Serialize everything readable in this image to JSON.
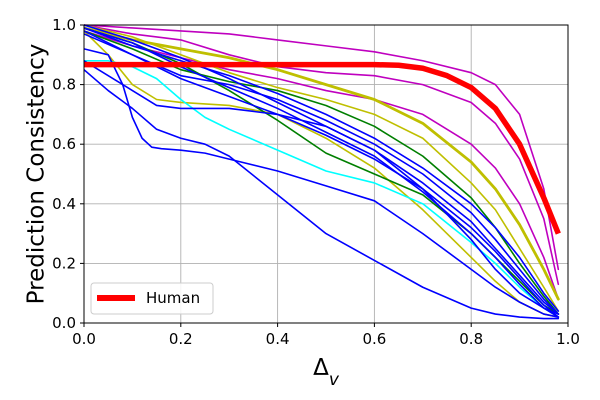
{
  "chart_data": {
    "type": "line",
    "title": "",
    "xlabel_main": "Δ",
    "xlabel_sub": "v",
    "ylabel": "Prediction Consistency",
    "xlim": [
      0,
      1
    ],
    "ylim": [
      0,
      1
    ],
    "xticks": [
      0,
      0.2,
      0.4,
      0.6,
      0.8,
      1
    ],
    "yticks": [
      0,
      0.2,
      0.4,
      0.6,
      0.8,
      1
    ],
    "xtick_labels": [
      "0.0",
      "0.2",
      "0.4",
      "0.6",
      "0.8",
      "1.0"
    ],
    "ytick_labels": [
      "0.0",
      "0.2",
      "0.4",
      "0.6",
      "0.8",
      "1.0"
    ],
    "grid": true,
    "legend": {
      "position": "lower-left",
      "entries": [
        "Human"
      ]
    },
    "colors": {
      "human": "#ff0000",
      "magenta": "#bf00bf",
      "yellow": "#bfbf00",
      "blue": "#0000ff",
      "green": "#007f00",
      "cyan": "#00ffff",
      "grid": "#b0b0b0"
    },
    "series": [
      {
        "name": "Human",
        "color": "human",
        "width": 5.5,
        "x": [
          0,
          0.05,
          0.1,
          0.2,
          0.3,
          0.4,
          0.5,
          0.6,
          0.65,
          0.7,
          0.75,
          0.8,
          0.85,
          0.9,
          0.95,
          0.98
        ],
        "y": [
          0.867,
          0.867,
          0.867,
          0.867,
          0.867,
          0.867,
          0.867,
          0.867,
          0.865,
          0.855,
          0.83,
          0.79,
          0.72,
          0.6,
          0.42,
          0.3
        ]
      },
      {
        "name": "magenta-1",
        "color": "magenta",
        "width": 1.6,
        "x": [
          0,
          0.1,
          0.2,
          0.3,
          0.4,
          0.5,
          0.6,
          0.7,
          0.8,
          0.85,
          0.9,
          0.95,
          0.98
        ],
        "y": [
          1.0,
          0.99,
          0.98,
          0.97,
          0.95,
          0.93,
          0.91,
          0.88,
          0.84,
          0.8,
          0.7,
          0.45,
          0.18
        ]
      },
      {
        "name": "magenta-2",
        "color": "magenta",
        "width": 1.6,
        "x": [
          0,
          0.1,
          0.2,
          0.3,
          0.4,
          0.5,
          0.6,
          0.7,
          0.8,
          0.85,
          0.9,
          0.95,
          0.98
        ],
        "y": [
          1.0,
          0.97,
          0.95,
          0.9,
          0.86,
          0.84,
          0.83,
          0.8,
          0.74,
          0.67,
          0.55,
          0.35,
          0.13
        ]
      },
      {
        "name": "magenta-3",
        "color": "magenta",
        "width": 1.6,
        "x": [
          0,
          0.1,
          0.2,
          0.3,
          0.4,
          0.5,
          0.6,
          0.7,
          0.8,
          0.85,
          0.9,
          0.95,
          0.98
        ],
        "y": [
          0.98,
          0.93,
          0.89,
          0.85,
          0.82,
          0.78,
          0.75,
          0.7,
          0.6,
          0.52,
          0.4,
          0.22,
          0.08
        ]
      },
      {
        "name": "yellow-1",
        "color": "yellow",
        "width": 2.8,
        "x": [
          0,
          0.1,
          0.2,
          0.3,
          0.4,
          0.5,
          0.6,
          0.7,
          0.8,
          0.85,
          0.9,
          0.95,
          0.98
        ],
        "y": [
          0.99,
          0.95,
          0.92,
          0.89,
          0.85,
          0.8,
          0.75,
          0.67,
          0.54,
          0.45,
          0.33,
          0.18,
          0.08
        ]
      },
      {
        "name": "yellow-2",
        "color": "yellow",
        "width": 1.6,
        "x": [
          0,
          0.1,
          0.2,
          0.3,
          0.4,
          0.5,
          0.6,
          0.7,
          0.8,
          0.85,
          0.9,
          0.95,
          0.98
        ],
        "y": [
          1.0,
          0.96,
          0.9,
          0.84,
          0.79,
          0.75,
          0.7,
          0.62,
          0.47,
          0.38,
          0.25,
          0.12,
          0.04
        ]
      },
      {
        "name": "yellow-3",
        "color": "yellow",
        "width": 1.6,
        "x": [
          0,
          0.05,
          0.1,
          0.15,
          0.2,
          0.3,
          0.4,
          0.5,
          0.6,
          0.7,
          0.8,
          0.85,
          0.9,
          0.95,
          0.98
        ],
        "y": [
          0.98,
          0.9,
          0.8,
          0.75,
          0.74,
          0.73,
          0.7,
          0.62,
          0.52,
          0.38,
          0.22,
          0.14,
          0.07,
          0.03,
          0.02
        ]
      },
      {
        "name": "green-1",
        "color": "green",
        "width": 1.6,
        "x": [
          0,
          0.1,
          0.2,
          0.3,
          0.4,
          0.5,
          0.6,
          0.7,
          0.8,
          0.85,
          0.9,
          0.95,
          0.98
        ],
        "y": [
          0.98,
          0.92,
          0.85,
          0.81,
          0.78,
          0.73,
          0.66,
          0.56,
          0.42,
          0.32,
          0.2,
          0.09,
          0.03
        ]
      },
      {
        "name": "green-2",
        "color": "green",
        "width": 1.6,
        "x": [
          0,
          0.1,
          0.2,
          0.3,
          0.4,
          0.5,
          0.6,
          0.7,
          0.8,
          0.85,
          0.9,
          0.95,
          0.98
        ],
        "y": [
          0.99,
          0.94,
          0.87,
          0.78,
          0.68,
          0.57,
          0.5,
          0.43,
          0.3,
          0.22,
          0.14,
          0.06,
          0.03
        ]
      },
      {
        "name": "cyan-1",
        "color": "cyan",
        "width": 1.6,
        "x": [
          0,
          0.05,
          0.1,
          0.15,
          0.2,
          0.25,
          0.3,
          0.4,
          0.5,
          0.6,
          0.7,
          0.8,
          0.85,
          0.9,
          0.95,
          0.98
        ],
        "y": [
          0.88,
          0.88,
          0.86,
          0.82,
          0.75,
          0.69,
          0.65,
          0.58,
          0.51,
          0.47,
          0.4,
          0.27,
          0.2,
          0.12,
          0.05,
          0.02
        ]
      },
      {
        "name": "blue-1",
        "color": "blue",
        "width": 1.6,
        "x": [
          0,
          0.05,
          0.1,
          0.15,
          0.2,
          0.25,
          0.3,
          0.4,
          0.5,
          0.6,
          0.7,
          0.8,
          0.85,
          0.9,
          0.95,
          0.98
        ],
        "y": [
          0.85,
          0.78,
          0.72,
          0.65,
          0.62,
          0.6,
          0.56,
          0.43,
          0.3,
          0.21,
          0.12,
          0.05,
          0.03,
          0.02,
          0.015,
          0.015
        ]
      },
      {
        "name": "blue-2",
        "color": "blue",
        "width": 1.6,
        "x": [
          0,
          0.05,
          0.08,
          0.1,
          0.12,
          0.14,
          0.16,
          0.2,
          0.25,
          0.3,
          0.4,
          0.5,
          0.6,
          0.7,
          0.8,
          0.85,
          0.9,
          0.95,
          0.98
        ],
        "y": [
          0.92,
          0.9,
          0.8,
          0.69,
          0.62,
          0.59,
          0.585,
          0.58,
          0.57,
          0.55,
          0.51,
          0.46,
          0.41,
          0.3,
          0.18,
          0.12,
          0.07,
          0.03,
          0.02
        ]
      },
      {
        "name": "blue-3",
        "color": "blue",
        "width": 1.6,
        "x": [
          0,
          0.1,
          0.15,
          0.2,
          0.3,
          0.4,
          0.5,
          0.6,
          0.7,
          0.8,
          0.85,
          0.9,
          0.95,
          0.98
        ],
        "y": [
          0.88,
          0.78,
          0.73,
          0.72,
          0.72,
          0.7,
          0.66,
          0.58,
          0.45,
          0.28,
          0.18,
          0.1,
          0.05,
          0.03
        ]
      },
      {
        "name": "blue-4",
        "color": "blue",
        "width": 1.6,
        "x": [
          0,
          0.1,
          0.2,
          0.3,
          0.4,
          0.5,
          0.6,
          0.7,
          0.8,
          0.85,
          0.9,
          0.95,
          0.98
        ],
        "y": [
          0.99,
          0.93,
          0.88,
          0.83,
          0.77,
          0.7,
          0.62,
          0.52,
          0.4,
          0.32,
          0.22,
          0.1,
          0.04
        ]
      },
      {
        "name": "blue-5",
        "color": "blue",
        "width": 1.6,
        "x": [
          0,
          0.1,
          0.2,
          0.3,
          0.4,
          0.5,
          0.6,
          0.7,
          0.8,
          0.85,
          0.9,
          0.95,
          0.98
        ],
        "y": [
          0.97,
          0.9,
          0.83,
          0.8,
          0.75,
          0.68,
          0.6,
          0.5,
          0.37,
          0.28,
          0.18,
          0.08,
          0.03
        ]
      },
      {
        "name": "blue-6",
        "color": "blue",
        "width": 1.6,
        "x": [
          0,
          0.1,
          0.2,
          0.3,
          0.4,
          0.5,
          0.6,
          0.7,
          0.8,
          0.85,
          0.9,
          0.95,
          0.98
        ],
        "y": [
          1.0,
          0.95,
          0.89,
          0.82,
          0.74,
          0.66,
          0.58,
          0.47,
          0.34,
          0.25,
          0.16,
          0.07,
          0.03
        ]
      },
      {
        "name": "blue-7",
        "color": "blue",
        "width": 1.6,
        "x": [
          0,
          0.1,
          0.2,
          0.3,
          0.4,
          0.5,
          0.6,
          0.7,
          0.8,
          0.85,
          0.9,
          0.95,
          0.98
        ],
        "y": [
          0.98,
          0.9,
          0.82,
          0.76,
          0.7,
          0.63,
          0.55,
          0.45,
          0.32,
          0.24,
          0.15,
          0.06,
          0.02
        ]
      },
      {
        "name": "blue-8",
        "color": "blue",
        "width": 1.6,
        "x": [
          0,
          0.1,
          0.2,
          0.3,
          0.4,
          0.5,
          0.6,
          0.7,
          0.8,
          0.85,
          0.9,
          0.95,
          0.98
        ],
        "y": [
          0.99,
          0.94,
          0.86,
          0.79,
          0.72,
          0.64,
          0.56,
          0.44,
          0.3,
          0.22,
          0.13,
          0.05,
          0.02
        ]
      }
    ]
  }
}
